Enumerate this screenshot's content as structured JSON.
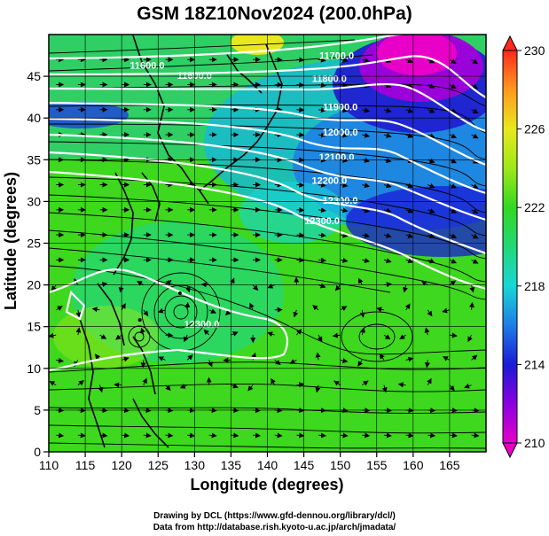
{
  "title": "GSM 18Z10Nov2024 (200.0hPa)",
  "credits": [
    "Drawing by DCL (https://www.gfd-dennou.org/library/dcl/)",
    "Data from http://database.rish.kyoto-u.ac.jp/arch/jmadata/"
  ],
  "axes": {
    "x_label": "Longitude (degrees)",
    "y_label": "Latitude  (degrees)",
    "x_ticks": [
      110,
      115,
      120,
      125,
      130,
      135,
      140,
      145,
      150,
      155,
      160,
      165
    ],
    "y_ticks": [
      0,
      5,
      10,
      15,
      20,
      25,
      30,
      35,
      40,
      45
    ],
    "x_range": [
      110,
      170
    ],
    "y_range": [
      0,
      50
    ]
  },
  "colorbar": {
    "ticks": [
      210,
      214,
      218,
      222,
      226,
      230
    ],
    "range": [
      210,
      230
    ],
    "colors": [
      "#e800c8",
      "#8a00e0",
      "#1b1bd6",
      "#1e7ee6",
      "#18d6d6",
      "#22d877",
      "#33d822",
      "#9ee81a",
      "#e8e81e",
      "#ff9a1e",
      "#ff2a1e"
    ]
  },
  "contour_labels": [
    {
      "text": "11600.0",
      "lon": 123.5,
      "lat": 45.9
    },
    {
      "text": "11600.0",
      "lon": 130,
      "lat": 44.7
    },
    {
      "text": "11700.0",
      "lon": 149.5,
      "lat": 47.1
    },
    {
      "text": "11800.0",
      "lon": 148.5,
      "lat": 44.3
    },
    {
      "text": "11900.0",
      "lon": 150,
      "lat": 40.9
    },
    {
      "text": "12000.0",
      "lon": 150,
      "lat": 37.9
    },
    {
      "text": "12100.0",
      "lon": 149.5,
      "lat": 34.9
    },
    {
      "text": "12200.0",
      "lon": 148.5,
      "lat": 32.1
    },
    {
      "text": "12300.0",
      "lon": 150,
      "lat": 29.7
    },
    {
      "text": "12300.0",
      "lon": 147.5,
      "lat": 27.3
    },
    {
      "text": "12300.0",
      "lon": 131,
      "lat": 14.9
    }
  ],
  "cyclones": [
    {
      "name": "circulation-typhoon-east",
      "lon": 128,
      "lat": 19
    },
    {
      "name": "circulation-typhoon-west",
      "lon": 122.5,
      "lat": 15.8
    }
  ]
}
